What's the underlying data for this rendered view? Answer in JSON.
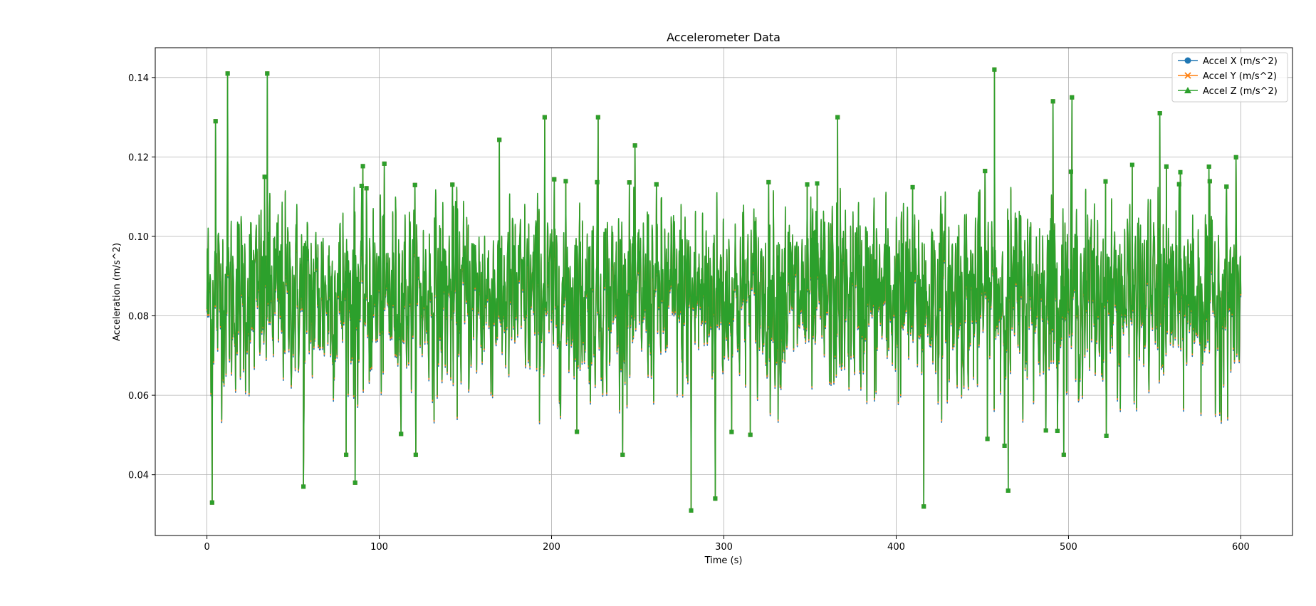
{
  "chart_data": {
    "type": "line",
    "title": "Accelerometer Data",
    "xlabel": "Time (s)",
    "ylabel": "Acceleration (m/s^2)",
    "xlim": [
      -30,
      630
    ],
    "ylim": [
      0.0247,
      0.1475
    ],
    "xticks": [
      0,
      100,
      200,
      300,
      400,
      500,
      600
    ],
    "yticks": [
      0.04,
      0.06,
      0.08,
      0.1,
      0.12,
      0.14
    ],
    "xtick_labels": [
      "0",
      "100",
      "200",
      "300",
      "400",
      "500",
      "600"
    ],
    "ytick_labels": [
      "0.04",
      "0.06",
      "0.08",
      "0.10",
      "0.12",
      "0.14"
    ],
    "grid": true,
    "legend_position": "top-right",
    "x_range": [
      0,
      600
    ],
    "series": [
      {
        "name": "Accel X (m/s^2)",
        "color": "#1f77b4",
        "marker": "circle"
      },
      {
        "name": "Accel Y (m/s^2)",
        "color": "#ff7f0e",
        "marker": "x"
      },
      {
        "name": "Accel Z (m/s^2)",
        "color": "#2ca02c",
        "marker": "triangle"
      }
    ],
    "highlights": [
      {
        "x": 3,
        "y": 0.033
      },
      {
        "x": 5,
        "y": 0.129
      },
      {
        "x": 12,
        "y": 0.141
      },
      {
        "x": 35,
        "y": 0.141
      },
      {
        "x": 56,
        "y": 0.037
      },
      {
        "x": 86,
        "y": 0.038
      },
      {
        "x": 196,
        "y": 0.13
      },
      {
        "x": 227,
        "y": 0.13
      },
      {
        "x": 281,
        "y": 0.031
      },
      {
        "x": 295,
        "y": 0.034
      },
      {
        "x": 366,
        "y": 0.13
      },
      {
        "x": 416,
        "y": 0.032
      },
      {
        "x": 457,
        "y": 0.142
      },
      {
        "x": 491,
        "y": 0.134
      },
      {
        "x": 502,
        "y": 0.135
      },
      {
        "x": 553,
        "y": 0.131
      },
      {
        "x": 465,
        "y": 0.036
      }
    ],
    "mean": 0.085,
    "spread": 0.012
  }
}
